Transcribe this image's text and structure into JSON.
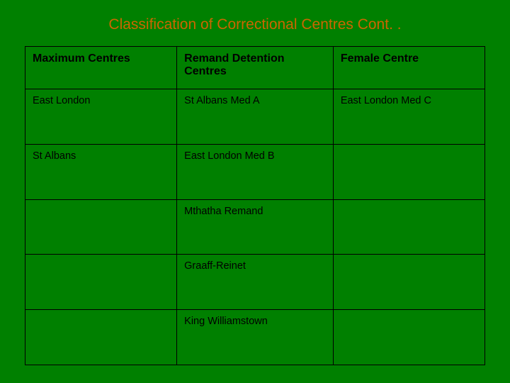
{
  "title": "Classification of Correctional Centres Cont. .",
  "background_color": "#008000",
  "title_color": "#cc6600",
  "border_color": "#000000",
  "text_color": "#000000",
  "columns": [
    {
      "header": "Maximum Centres"
    },
    {
      "header": "Remand Detention Centres"
    },
    {
      "header": "Female Centre"
    }
  ],
  "rows": [
    [
      "East London",
      "St Albans Med A",
      "East London Med C"
    ],
    [
      "St Albans",
      "East London Med B",
      ""
    ],
    [
      "",
      "Mthatha Remand",
      ""
    ],
    [
      "",
      "Graaff-Reinet",
      ""
    ],
    [
      "",
      "King Williamstown",
      ""
    ]
  ]
}
